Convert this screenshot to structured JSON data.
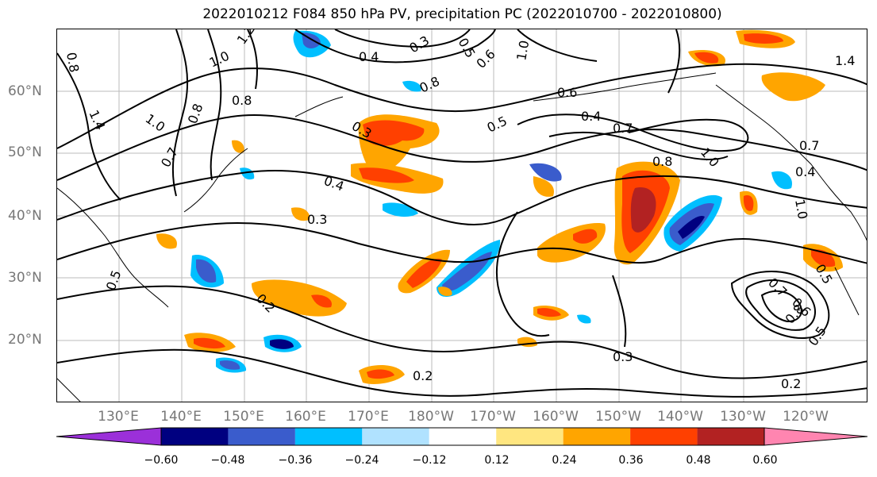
{
  "title": "2022010212 F084 850 hPa PV, precipitation PC (2022010700 - 2022010800)",
  "lat_labels": [
    "60°N",
    "50°N",
    "40°N",
    "30°N",
    "20°N"
  ],
  "lon_labels": [
    "130°E",
    "140°E",
    "150°E",
    "160°E",
    "170°E",
    "180°W",
    "170°W",
    "160°W",
    "150°W",
    "140°W",
    "130°W",
    "120°W"
  ],
  "contour_labels": [
    "0.8",
    "1.2",
    "1.0",
    "1.4",
    "1.0",
    "0.8",
    "0.8",
    "0.7",
    "0.4",
    "0.3",
    "0.5",
    "0.6",
    "1.0",
    "1.4",
    "0.8",
    "0.6",
    "0.4",
    "0.7",
    "0.5",
    "0.3",
    "0.4",
    "0.3",
    "0.8",
    "1.0",
    "0.7",
    "0.4",
    "0.5",
    "0.2",
    "0.3",
    "0.2",
    "0.5",
    "0.7",
    "0.6",
    "0.8",
    "0.5",
    "0.2",
    "1.0"
  ],
  "colorbar": {
    "ticks": [
      "−0.60",
      "−0.48",
      "−0.36",
      "−0.24",
      "−0.12",
      "0.12",
      "0.24",
      "0.36",
      "0.48",
      "0.60"
    ],
    "colors": [
      "#9b30d9",
      "#000080",
      "#3a5ccc",
      "#00bfff",
      "#b0e2ff",
      "#ffffff",
      "#ffe680",
      "#ffa500",
      "#ff4000",
      "#b22222",
      "#ff85b0"
    ]
  }
}
